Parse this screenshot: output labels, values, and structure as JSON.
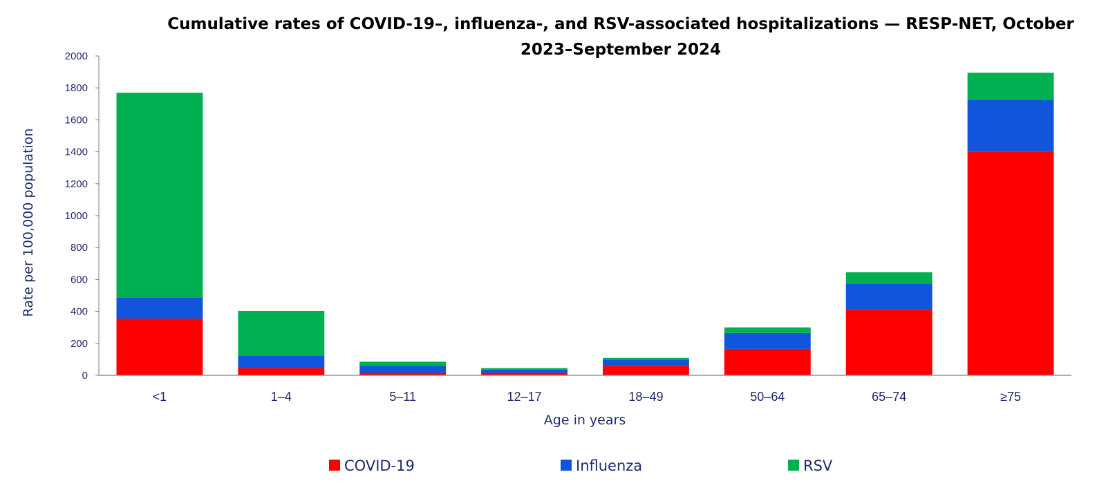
{
  "chart_data": {
    "type": "bar",
    "stacked": true,
    "title_line1": "Cumulative rates of COVID-19–, influenza-, and RSV-associated hospitalizations — RESP-NET, October",
    "title_line2": "2023–September 2024",
    "xlabel": "Age in years",
    "ylabel": "Rate per 100,000 population",
    "ylim": [
      0,
      2000
    ],
    "yticks": [
      0,
      200,
      400,
      600,
      800,
      1000,
      1200,
      1400,
      1600,
      1800,
      2000
    ],
    "categories": [
      "<1",
      "1–4",
      "5–11",
      "12–17",
      "18–49",
      "50–64",
      "65–74",
      "≥75"
    ],
    "series": [
      {
        "name": "COVID-19",
        "color": "#ff0000",
        "values": [
          355,
          45,
          15,
          15,
          60,
          165,
          415,
          1400
        ]
      },
      {
        "name": "Influenza",
        "color": "#1155dd",
        "values": [
          130,
          78,
          45,
          20,
          37,
          100,
          160,
          325
        ]
      },
      {
        "name": "RSV",
        "color": "#00b050",
        "values": [
          1285,
          280,
          25,
          10,
          12,
          35,
          70,
          170
        ]
      }
    ],
    "grid": false,
    "legend_position": "bottom"
  }
}
